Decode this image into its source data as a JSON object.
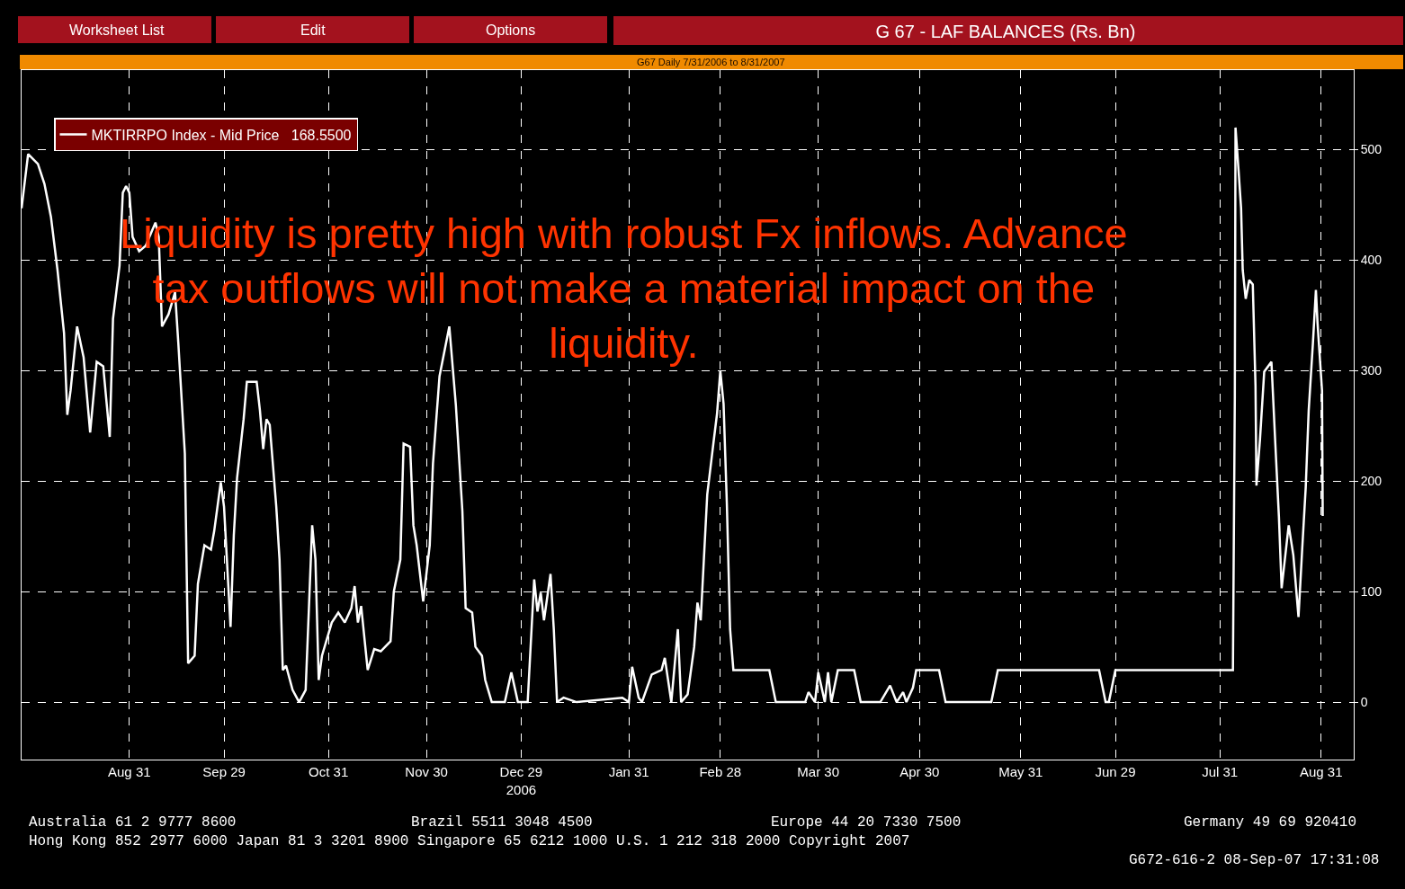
{
  "chart_data": {
    "type": "line",
    "title": "G 67 - LAF BALANCES (Rs. Bn)",
    "subtitle": "G67 Daily 7/31/2006 to 8/31/2007",
    "annotations": [
      "Liquidity is pretty high with robust Fx inflows. Advance\ntax outflows will not make a material impact on the\nliquidity.",
      "Worksheet List",
      "Edit",
      "Options",
      "Australia 61 2 9777 8600",
      "Brazil 5511 3048 4500",
      "Europe 44 20 7330 7500",
      "Germany 49 69 920410",
      "Hong Kong 852 2977 6000 Japan 81 3 3201 8900 Singapore 65 6212 1000 U.S. 1 212 318 2000 Copyright 2007",
      "G672-616-2 08-Sep-07 17:31:08"
    ],
    "series": [
      {
        "name": "MKTIRRPO Index - Mid Price   168.5500",
        "color": "#ffffff",
        "x": [
          "2006-07-29",
          "2006-07-31",
          "2006-08-03",
          "2006-08-05",
          "2006-08-07",
          "2006-08-09",
          "2006-08-11",
          "2006-08-12",
          "2006-08-13",
          "2006-08-15",
          "2006-08-17",
          "2006-08-19",
          "2006-08-21",
          "2006-08-23",
          "2006-08-25",
          "2006-08-26",
          "2006-08-28",
          "2006-08-29",
          "2006-08-30",
          "2006-08-31",
          "2006-09-01",
          "2006-09-03",
          "2006-09-05",
          "2006-09-08",
          "2006-09-09",
          "2006-09-10",
          "2006-09-12",
          "2006-09-14",
          "2006-09-15",
          "2006-09-17",
          "2006-09-18",
          "2006-09-20",
          "2006-09-21",
          "2006-09-23",
          "2006-09-25",
          "2006-09-26",
          "2006-09-28",
          "2006-09-29",
          "2006-10-01",
          "2006-10-02",
          "2006-10-03",
          "2006-10-05",
          "2006-10-06",
          "2006-10-09",
          "2006-10-10",
          "2006-10-11",
          "2006-10-12",
          "2006-10-13",
          "2006-10-15",
          "2006-10-16",
          "2006-10-17",
          "2006-10-18",
          "2006-10-20",
          "2006-10-22",
          "2006-10-24",
          "2006-10-25",
          "2006-10-26",
          "2006-10-27",
          "2006-10-28",
          "2006-10-29",
          "2006-11-01",
          "2006-11-03",
          "2006-11-05",
          "2006-11-07",
          "2006-11-08",
          "2006-11-09",
          "2006-11-10",
          "2006-11-12",
          "2006-11-14",
          "2006-11-16",
          "2006-11-19",
          "2006-11-20",
          "2006-11-22",
          "2006-11-23",
          "2006-11-25",
          "2006-11-26",
          "2006-11-27",
          "2006-11-29",
          "2006-12-01",
          "2006-12-02",
          "2006-12-04",
          "2006-12-07",
          "2006-12-09",
          "2006-12-11",
          "2006-12-12",
          "2006-12-14",
          "2006-12-15",
          "2006-12-17",
          "2006-12-18",
          "2006-12-20",
          "2006-12-24",
          "2006-12-26",
          "2006-12-28",
          "2006-12-31",
          "2007-01-02",
          "2007-01-03",
          "2007-01-04",
          "2007-01-05",
          "2007-01-07",
          "2007-01-08",
          "2007-01-09",
          "2007-01-11",
          "2007-01-15",
          "2007-01-29",
          "2007-01-31",
          "2007-02-01",
          "2007-02-03",
          "2007-02-04",
          "2007-02-07",
          "2007-02-10",
          "2007-02-11",
          "2007-02-13",
          "2007-02-15",
          "2007-02-16",
          "2007-02-18",
          "2007-02-20",
          "2007-02-21",
          "2007-02-22",
          "2007-02-23",
          "2007-02-24",
          "2007-02-26",
          "2007-02-27",
          "2007-02-28",
          "2007-03-01",
          "2007-03-02",
          "2007-03-03",
          "2007-03-04",
          "2007-03-15",
          "2007-03-17",
          "2007-03-26",
          "2007-03-27",
          "2007-03-29",
          "2007-03-30",
          "2007-04-01",
          "2007-04-02",
          "2007-04-03",
          "2007-04-05",
          "2007-04-10",
          "2007-04-12",
          "2007-04-18",
          "2007-04-21",
          "2007-04-23",
          "2007-04-25",
          "2007-04-26",
          "2007-04-28",
          "2007-04-29",
          "2007-05-06",
          "2007-05-08",
          "2007-05-22",
          "2007-05-24",
          "2007-06-24",
          "2007-06-26",
          "2007-06-27",
          "2007-06-29",
          "2007-08-04",
          "2007-08-04T14:00",
          "2007-08-04T19:00",
          "2007-08-05T17:00",
          "2007-08-06T12:00",
          "2007-08-07",
          "2007-08-07T22:00",
          "2007-08-09",
          "2007-08-10T02:00",
          "2007-08-10T22:00",
          "2007-08-11T05:00",
          "2007-08-12T07:00",
          "2007-08-13T14:00",
          "2007-08-15T19:00",
          "2007-08-16T22:00",
          "2007-08-18T02:00",
          "2007-08-18T22:00",
          "2007-08-21T02:00",
          "2007-08-22T12:00",
          "2007-08-24T02:00",
          "2007-08-25T05:00",
          "2007-08-26T07:00",
          "2007-08-27T05:00",
          "2007-08-28T12:00",
          "2007-08-29T10:00",
          "2007-08-29T22:00",
          "2007-08-31T07:00",
          "2007-08-31T12:00"
        ],
        "values": [
          447,
          496,
          487,
          469,
          439,
          391,
          334,
          260,
          282,
          340,
          312,
          244,
          308,
          304,
          240,
          347,
          395,
          461,
          467,
          461,
          421,
          408,
          413,
          434,
          421,
          340,
          351,
          371,
          325,
          225,
          35,
          42,
          107,
          142,
          138,
          155,
          199,
          177,
          68,
          151,
          203,
          256,
          290,
          290,
          264,
          229,
          256,
          251,
          177,
          129,
          29,
          33,
          11,
          0,
          11,
          85,
          160,
          129,
          20,
          42,
          72,
          81,
          72,
          85,
          105,
          72,
          87,
          29,
          48,
          46,
          55,
          100,
          129,
          234,
          231,
          160,
          142,
          91,
          142,
          216,
          295,
          340,
          269,
          173,
          85,
          81,
          50,
          42,
          20,
          0,
          0,
          27,
          0,
          0,
          111,
          82,
          99,
          74,
          116,
          66,
          0,
          4,
          0,
          4,
          0,
          32,
          4,
          0,
          25,
          29,
          40,
          0,
          66,
          0,
          7,
          50,
          90,
          74,
          131,
          188,
          237,
          261,
          300,
          270,
          180,
          66,
          29,
          29,
          0,
          0,
          9,
          0,
          27,
          0,
          27,
          0,
          29,
          29,
          0,
          0,
          15,
          0,
          9,
          0,
          13,
          29,
          29,
          0,
          0,
          29,
          29,
          0,
          0,
          29,
          29,
          277,
          520,
          482,
          447,
          391,
          365,
          382,
          378,
          286,
          196,
          238,
          299,
          308,
          238,
          168,
          103,
          160,
          133,
          77,
          138,
          194,
          264,
          325,
          373,
          343,
          282,
          168.55
        ]
      }
    ],
    "xlim": [
      "2006-07-29",
      "2007-09-10"
    ],
    "xticks": [
      {
        "value": "2006-08-31",
        "label": "Aug 31"
      },
      {
        "value": "2006-09-29",
        "label": "Sep 29"
      },
      {
        "value": "2006-10-31",
        "label": "Oct 31"
      },
      {
        "value": "2006-11-30",
        "label": "Nov 30"
      },
      {
        "value": "2006-12-29",
        "label": "Dec 29\n2006"
      },
      {
        "value": "2007-01-31",
        "label": "Jan 31"
      },
      {
        "value": "2007-02-28",
        "label": "Feb 28"
      },
      {
        "value": "2007-03-30",
        "label": "Mar 30"
      },
      {
        "value": "2007-04-30",
        "label": "Apr 30"
      },
      {
        "value": "2007-05-31",
        "label": "May 31"
      },
      {
        "value": "2007-06-29",
        "label": "Jun 29"
      },
      {
        "value": "2007-07-31",
        "label": "Jul 31"
      },
      {
        "value": "2007-08-31",
        "label": "Aug 31"
      }
    ],
    "ylim": [
      -52,
      572
    ],
    "yticks": [
      0,
      100,
      200,
      300,
      400,
      500
    ],
    "grid": true,
    "legend": "top left",
    "marker": "none",
    "line_style": "solid"
  }
}
